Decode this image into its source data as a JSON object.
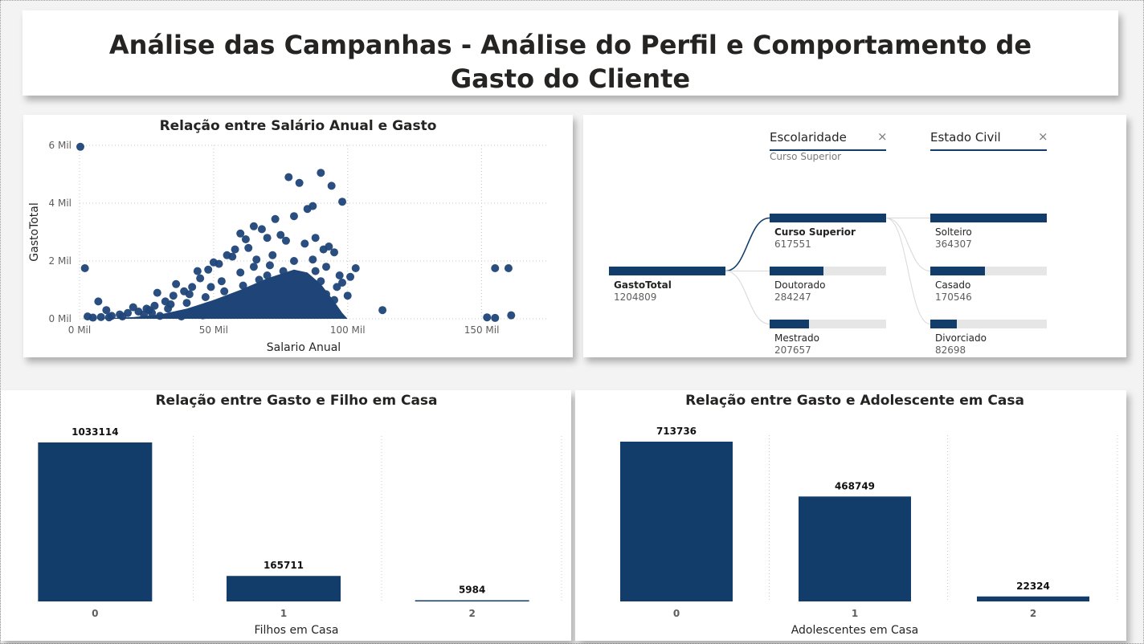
{
  "page": {
    "title_line1": "Análise das Campanhas - Análise do Perfil e Comportamento de",
    "title_line2": "Gasto do Cliente"
  },
  "colors": {
    "bar": "#123d6b",
    "point": "#1f4478",
    "track": "#e6e6e6",
    "background": "#f3f3f3"
  },
  "scatter": {
    "chart_data": {
      "type": "scatter",
      "title": "Relação entre Salário Anual e Gasto",
      "xlabel": "Salario Anual",
      "ylabel": "GastoTotal",
      "xlim": [
        0,
        175000
      ],
      "ylim": [
        0,
        6000
      ],
      "xticks": [
        {
          "v": 0,
          "label": "0 Mil"
        },
        {
          "v": 50000,
          "label": "50 Mil"
        },
        {
          "v": 100000,
          "label": "100 Mil"
        },
        {
          "v": 150000,
          "label": "150 Mil"
        }
      ],
      "yticks": [
        {
          "v": 0,
          "label": "0 Mil"
        },
        {
          "v": 2000,
          "label": "2 Mil"
        },
        {
          "v": 4000,
          "label": "4 Mil"
        },
        {
          "v": 6000,
          "label": "6 Mil"
        }
      ],
      "grid": true,
      "points": [
        [
          300,
          5950
        ],
        [
          2000,
          1750
        ],
        [
          113000,
          300
        ],
        [
          155000,
          1750
        ],
        [
          160000,
          1750
        ],
        [
          152000,
          50
        ],
        [
          155000,
          30
        ],
        [
          161000,
          120
        ],
        [
          78000,
          4900
        ],
        [
          82000,
          4700
        ],
        [
          90000,
          5050
        ],
        [
          94000,
          4600
        ],
        [
          98000,
          4050
        ],
        [
          87000,
          3900
        ],
        [
          85000,
          3800
        ],
        [
          80000,
          3550
        ],
        [
          73000,
          3450
        ],
        [
          68000,
          3100
        ],
        [
          65000,
          3200
        ],
        [
          60000,
          2950
        ],
        [
          62000,
          2750
        ],
        [
          70000,
          2800
        ],
        [
          75000,
          2900
        ],
        [
          77000,
          2700
        ],
        [
          88000,
          2800
        ],
        [
          91000,
          2400
        ],
        [
          95000,
          2300
        ],
        [
          93000,
          2500
        ],
        [
          84000,
          2600
        ],
        [
          103000,
          1750
        ],
        [
          101000,
          1450
        ],
        [
          98000,
          1250
        ],
        [
          96000,
          1100
        ],
        [
          92000,
          1800
        ],
        [
          87000,
          2050
        ],
        [
          80000,
          2000
        ],
        [
          72000,
          2200
        ],
        [
          58000,
          2400
        ],
        [
          55000,
          2200
        ],
        [
          52000,
          1900
        ],
        [
          48000,
          1700
        ],
        [
          45000,
          1400
        ],
        [
          42000,
          1100
        ],
        [
          39000,
          950
        ],
        [
          35000,
          800
        ],
        [
          32000,
          600
        ],
        [
          28000,
          450
        ],
        [
          25000,
          350
        ],
        [
          22000,
          250
        ],
        [
          18000,
          200
        ],
        [
          15000,
          150
        ],
        [
          12000,
          100
        ],
        [
          8000,
          60
        ],
        [
          5000,
          40
        ],
        [
          7000,
          600
        ],
        [
          10000,
          300
        ],
        [
          3000,
          80
        ],
        [
          20000,
          400
        ],
        [
          29000,
          900
        ],
        [
          36000,
          1200
        ],
        [
          44000,
          1650
        ],
        [
          50000,
          1950
        ],
        [
          57000,
          2150
        ],
        [
          63000,
          2450
        ],
        [
          66000,
          2050
        ],
        [
          71000,
          1850
        ],
        [
          76000,
          1650
        ],
        [
          81000,
          1450
        ],
        [
          86000,
          1250
        ],
        [
          89000,
          1050
        ],
        [
          92000,
          850
        ],
        [
          95000,
          650
        ],
        [
          67000,
          1350
        ],
        [
          61000,
          1150
        ],
        [
          54000,
          950
        ],
        [
          47000,
          750
        ],
        [
          40000,
          550
        ],
        [
          33000,
          350
        ],
        [
          27000,
          200
        ],
        [
          74000,
          1050
        ],
        [
          79000,
          850
        ],
        [
          69000,
          650
        ],
        [
          59000,
          550
        ],
        [
          51000,
          350
        ],
        [
          43000,
          250
        ],
        [
          37000,
          150
        ],
        [
          30000,
          100
        ],
        [
          83000,
          600
        ],
        [
          78000,
          400
        ],
        [
          64000,
          300
        ],
        [
          56000,
          200
        ],
        [
          46000,
          120
        ],
        [
          38000,
          80
        ],
        [
          60000,
          1600
        ],
        [
          65000,
          1800
        ],
        [
          70000,
          1500
        ],
        [
          75000,
          1300
        ],
        [
          80000,
          1150
        ],
        [
          85000,
          950
        ],
        [
          90000,
          1300
        ],
        [
          100000,
          800
        ],
        [
          97000,
          1500
        ],
        [
          88000,
          1650
        ],
        [
          53000,
          1300
        ],
        [
          49000,
          1100
        ],
        [
          41000,
          850
        ],
        [
          34000,
          500
        ],
        [
          26000,
          300
        ],
        [
          24000,
          150
        ],
        [
          16000,
          80
        ],
        [
          11000,
          50
        ],
        [
          62000,
          900
        ],
        [
          58000,
          750
        ],
        [
          66000,
          550
        ],
        [
          72000,
          450
        ],
        [
          77000,
          300
        ],
        [
          82000,
          250
        ],
        [
          87000,
          400
        ],
        [
          93000,
          500
        ]
      ]
    }
  },
  "tree": {
    "headers": [
      {
        "label": "Escolaridade",
        "selected": "Curso Superior",
        "close": "×"
      },
      {
        "label": "Estado Civil",
        "close": "×"
      }
    ],
    "root": {
      "label": "GastoTotal",
      "value": "1204809",
      "fraction": 1.0
    },
    "level1": [
      {
        "label": "Curso Superior",
        "value": "617551",
        "fraction": 1.0,
        "selected": true
      },
      {
        "label": "Doutorado",
        "value": "284247",
        "fraction": 0.46
      },
      {
        "label": "Mestrado",
        "value": "207657",
        "fraction": 0.34
      }
    ],
    "level2": [
      {
        "label": "Solteiro",
        "value": "364307",
        "fraction": 1.0
      },
      {
        "label": "Casado",
        "value": "170546",
        "fraction": 0.47
      },
      {
        "label": "Divorciado",
        "value": "82698",
        "fraction": 0.23
      }
    ]
  },
  "bar_filhos": {
    "chart_data": {
      "type": "bar",
      "title": "Relação entre Gasto e Filho em Casa",
      "xlabel": "Filhos em Casa",
      "ylabel": "",
      "categories": [
        "0",
        "1",
        "2"
      ],
      "values": [
        1033114,
        165711,
        5984
      ],
      "value_labels": [
        "1033114",
        "165711",
        "5984"
      ],
      "ylim": [
        0,
        1033114
      ],
      "grid": true
    }
  },
  "bar_adolescentes": {
    "chart_data": {
      "type": "bar",
      "title": "Relação entre Gasto e Adolescente em Casa",
      "xlabel": "Adolescentes em Casa",
      "ylabel": "",
      "categories": [
        "0",
        "1",
        "2"
      ],
      "values": [
        713736,
        468749,
        22324
      ],
      "value_labels": [
        "713736",
        "468749",
        "22324"
      ],
      "ylim": [
        0,
        713736
      ],
      "grid": true
    }
  }
}
